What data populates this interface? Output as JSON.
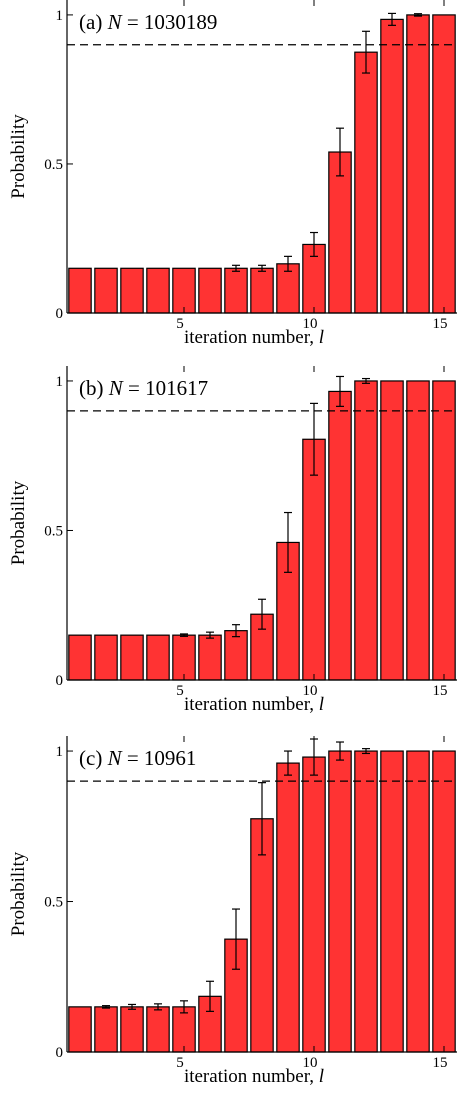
{
  "chart_data": [
    {
      "type": "bar",
      "title": "(a) N = 1030189",
      "title_parts": {
        "tag": "(a)",
        "var": "N",
        "eq": " = ",
        "num": "1030189"
      },
      "xlabel": "iteration number, ",
      "xlabel_var": "l",
      "ylabel": "Probability",
      "x": [
        1,
        2,
        3,
        4,
        5,
        6,
        7,
        8,
        9,
        10,
        11,
        12,
        13,
        14,
        15
      ],
      "values": [
        0.15,
        0.15,
        0.15,
        0.15,
        0.15,
        0.15,
        0.15,
        0.15,
        0.165,
        0.23,
        0.54,
        0.875,
        0.985,
        1.0,
        1.0
      ],
      "errors": [
        0.0,
        0.0,
        0.0,
        0.0,
        0.0,
        0.0,
        0.01,
        0.01,
        0.025,
        0.04,
        0.08,
        0.07,
        0.02,
        0.004,
        0.0
      ],
      "threshold": 0.9,
      "xticks": [
        5,
        10,
        15
      ],
      "yticks": [
        {
          "v": 0,
          "label": "0"
        },
        {
          "v": 0.5,
          "label": "0.5"
        },
        {
          "v": 1,
          "label": "1"
        }
      ],
      "xlim": [
        0.5,
        15.5
      ],
      "ylim": [
        0,
        1.05
      ],
      "bar_color": "#ff3333"
    },
    {
      "type": "bar",
      "title": "(b) N = 101617",
      "title_parts": {
        "tag": "(b)",
        "var": "N",
        "eq": " = ",
        "num": "101617"
      },
      "xlabel": "iteration number, ",
      "xlabel_var": "l",
      "ylabel": "Probability",
      "x": [
        1,
        2,
        3,
        4,
        5,
        6,
        7,
        8,
        9,
        10,
        11,
        12,
        13,
        14,
        15
      ],
      "values": [
        0.15,
        0.15,
        0.15,
        0.15,
        0.15,
        0.15,
        0.165,
        0.22,
        0.46,
        0.805,
        0.965,
        1.0,
        1.0,
        1.0,
        1.0
      ],
      "errors": [
        0.0,
        0.0,
        0.0,
        0.0,
        0.004,
        0.01,
        0.02,
        0.05,
        0.1,
        0.12,
        0.05,
        0.008,
        0.0,
        0.0,
        0.0
      ],
      "threshold": 0.9,
      "xticks": [
        5,
        10,
        15
      ],
      "yticks": [
        {
          "v": 0,
          "label": "0"
        },
        {
          "v": 0.5,
          "label": "0.5"
        },
        {
          "v": 1,
          "label": "1"
        }
      ],
      "xlim": [
        0.5,
        15.5
      ],
      "ylim": [
        0,
        1.05
      ],
      "bar_color": "#ff3333"
    },
    {
      "type": "bar",
      "title": "(c) N = 10961",
      "title_parts": {
        "tag": "(c)",
        "var": "N",
        "eq": " = ",
        "num": "10961"
      },
      "xlabel": "iteration number, ",
      "xlabel_var": "l",
      "ylabel": "Probability",
      "x": [
        1,
        2,
        3,
        4,
        5,
        6,
        7,
        8,
        9,
        10,
        11,
        12,
        13,
        14,
        15
      ],
      "values": [
        0.15,
        0.15,
        0.15,
        0.15,
        0.15,
        0.185,
        0.375,
        0.775,
        0.96,
        0.98,
        1.0,
        1.0,
        1.0,
        1.0,
        1.0
      ],
      "errors": [
        0.0,
        0.004,
        0.008,
        0.01,
        0.02,
        0.05,
        0.1,
        0.12,
        0.04,
        0.06,
        0.03,
        0.008,
        0.0,
        0.0,
        0.0
      ],
      "threshold": 0.9,
      "xticks": [
        5,
        10,
        15
      ],
      "yticks": [
        {
          "v": 0,
          "label": "0"
        },
        {
          "v": 0.5,
          "label": "0.5"
        },
        {
          "v": 1,
          "label": "1"
        }
      ],
      "xlim": [
        0.5,
        15.5
      ],
      "ylim": [
        0,
        1.05
      ],
      "bar_color": "#ff3333"
    }
  ]
}
